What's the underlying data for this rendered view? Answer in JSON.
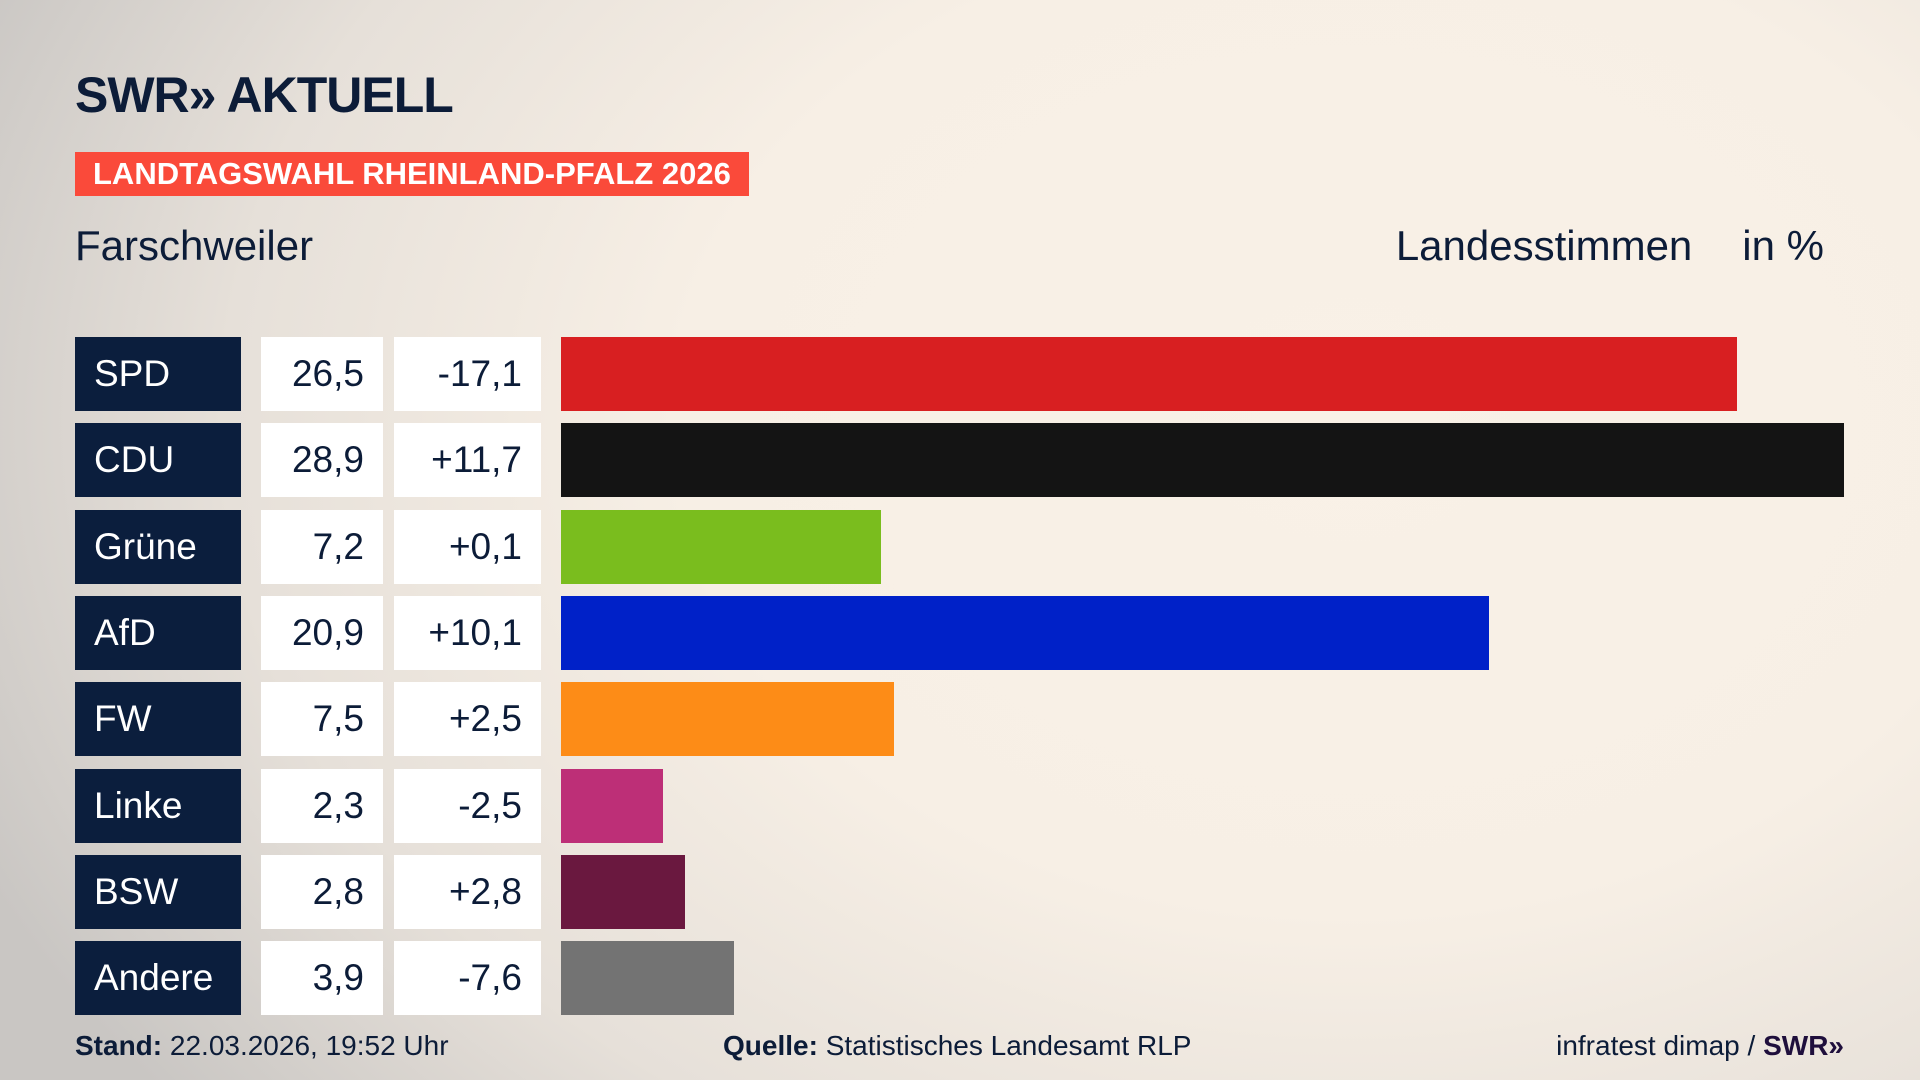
{
  "brand": {
    "logo": "SWR» AKTUELL",
    "footer_logo": "SWR»"
  },
  "banner": "LANDTAGSWAHL RHEINLAND-PFALZ 2026",
  "location": "Farschweiler",
  "header": {
    "vote_type": "Landesstimmen",
    "unit": "in %"
  },
  "chart_data": {
    "type": "bar",
    "orientation": "horizontal",
    "categories": [
      "SPD",
      "CDU",
      "Grüne",
      "AfD",
      "FW",
      "Linke",
      "BSW",
      "Andere"
    ],
    "values": [
      26.5,
      28.9,
      7.2,
      20.9,
      7.5,
      2.3,
      2.8,
      3.9
    ],
    "value_labels": [
      "26,5",
      "28,9",
      "7,2",
      "20,9",
      "7,5",
      "2,3",
      "2,8",
      "3,9"
    ],
    "changes": [
      -17.1,
      11.7,
      0.1,
      10.1,
      2.5,
      -2.5,
      2.8,
      -7.6
    ],
    "change_labels": [
      "-17,1",
      "+11,7",
      "+0,1",
      "+10,1",
      "+2,5",
      "-2,5",
      "+2,8",
      "-7,6"
    ],
    "colors": [
      "#d81f21",
      "#141414",
      "#7abd1e",
      "#0021c8",
      "#fd8c17",
      "#bd2f77",
      "#6a183f",
      "#737373"
    ],
    "xlim": [
      0,
      28.9
    ],
    "grid": false
  },
  "footer": {
    "stand_label": "Stand:",
    "stand_value": "22.03.2026, 19:52 Uhr",
    "source_label": "Quelle:",
    "source_value": "Statistisches Landesamt RLP",
    "credit": "infratest dimap /"
  }
}
